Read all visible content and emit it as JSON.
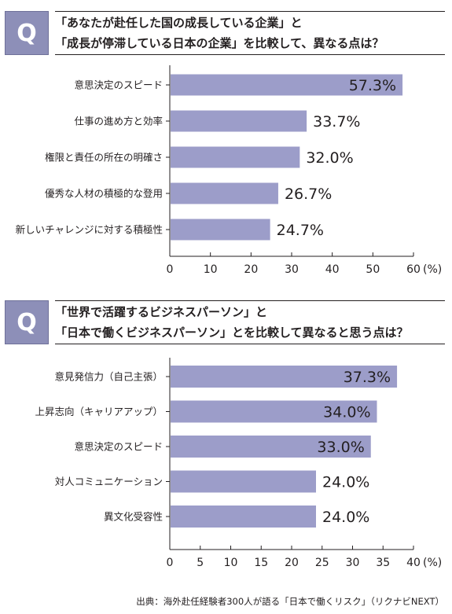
{
  "chart_data": [
    {
      "type": "bar",
      "orientation": "horizontal",
      "question_marker": "Q",
      "title_lines": [
        "「あなたが赴任した国の成長している企業」と",
        "「成長が停滞している日本の企業」を比較して、異なる点は？"
      ],
      "categories": [
        "意思決定のスピード",
        "仕事の進め方と効率",
        "権限と責任の所在の明確さ",
        "優秀な人材の積極的な登用",
        "新しいチャレンジに対する積極性"
      ],
      "values": [
        57.3,
        33.7,
        32.0,
        26.7,
        24.7
      ],
      "value_labels": [
        "57.3%",
        "33.7%",
        "32.0%",
        "26.7%",
        "24.7%"
      ],
      "xlim": [
        0,
        60
      ],
      "ticks": [
        "0",
        "10",
        "20",
        "30",
        "40",
        "50",
        "60"
      ],
      "unit_label": "(%)",
      "bar_color": "#9c9dc9",
      "grid": false
    },
    {
      "type": "bar",
      "orientation": "horizontal",
      "question_marker": "Q",
      "title_lines": [
        "「世界で活躍するビジネスパーソン」と",
        "「日本で働くビジネスパーソン」とを比較して異なると思う点は？"
      ],
      "categories": [
        "意見発信力（自己主張）",
        "上昇志向（キャリアアップ）",
        "意思決定のスピード",
        "対人コミュニケーション",
        "異文化受容性"
      ],
      "values": [
        37.3,
        34.0,
        33.0,
        24.0,
        24.0
      ],
      "value_labels": [
        "37.3%",
        "34.0%",
        "33.0%",
        "24.0%",
        "24.0%"
      ],
      "xlim": [
        0,
        40
      ],
      "ticks": [
        "0",
        "5",
        "10",
        "15",
        "20",
        "25",
        "30",
        "35",
        "40"
      ],
      "unit_label": "(%)",
      "bar_color": "#9c9dc9",
      "grid": false
    }
  ],
  "source": "出典：海外赴任経験者300人が語る「日本で働くリスク」（リクナビNEXT）"
}
